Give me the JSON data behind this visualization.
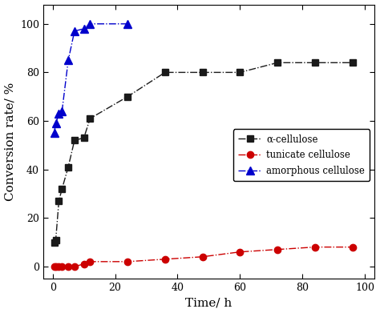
{
  "alpha_cellulose_x": [
    0.5,
    1,
    2,
    3,
    5,
    7,
    10,
    12,
    24,
    36,
    48,
    60,
    72,
    84,
    96
  ],
  "alpha_cellulose_y": [
    10,
    11,
    27,
    32,
    41,
    52,
    53,
    61,
    70,
    80,
    80,
    80,
    84,
    84,
    84
  ],
  "tunicate_x": [
    0.5,
    1,
    2,
    3,
    5,
    7,
    10,
    12,
    24,
    36,
    48,
    60,
    72,
    84,
    96
  ],
  "tunicate_y": [
    0,
    0,
    0,
    0,
    0,
    0,
    1,
    2,
    2,
    3,
    4,
    6,
    7,
    8,
    8
  ],
  "amorphous_x": [
    0.5,
    1,
    2,
    3,
    5,
    7,
    10,
    12,
    24
  ],
  "amorphous_y": [
    55,
    59,
    63,
    64,
    85,
    97,
    98,
    100,
    100
  ],
  "xlabel": "Time/ h",
  "ylabel": "Conversion rate/ %",
  "xlim": [
    -3,
    103
  ],
  "ylim": [
    -5,
    108
  ],
  "xticks": [
    0,
    20,
    40,
    60,
    80,
    100
  ],
  "yticks": [
    0,
    20,
    40,
    60,
    80,
    100
  ],
  "legend_labels": [
    "α-cellulose",
    "tunicate cellulose",
    "amorphous cellulose"
  ],
  "alpha_color": "#1a1a1a",
  "tunicate_color": "#cc0000",
  "amorphous_color": "#0000cc",
  "xlabel_fontsize": 11,
  "ylabel_fontsize": 11,
  "tick_fontsize": 9,
  "legend_fontsize": 8.5,
  "linewidth": 1.0,
  "marker_size_sq": 6,
  "marker_size_circ": 6,
  "marker_size_tri": 7,
  "background_color": "#f0f0f0"
}
